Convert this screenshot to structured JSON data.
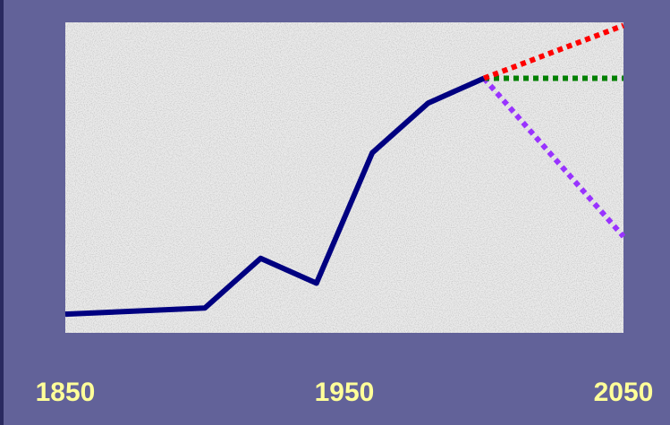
{
  "chart_data": {
    "type": "line",
    "xlim": [
      1850,
      2050
    ],
    "xticks": [
      1850,
      1950,
      2050
    ],
    "ylim": [
      0,
      100
    ],
    "series": [
      {
        "color": "#000080",
        "dashed": false,
        "x": [
          1850,
          1900,
          1920,
          1940,
          1960,
          1980,
          2000
        ],
        "values": [
          6,
          8,
          24,
          16,
          58,
          74,
          82
        ]
      },
      {
        "color": "#ff0000",
        "dashed": true,
        "x": [
          2000,
          2050
        ],
        "values": [
          82,
          99
        ]
      },
      {
        "color": "#008000",
        "dashed": true,
        "x": [
          2000,
          2050
        ],
        "values": [
          82,
          82
        ]
      },
      {
        "color": "#9933ff",
        "dashed": true,
        "x": [
          2000,
          2050
        ],
        "values": [
          82,
          31
        ]
      }
    ]
  }
}
